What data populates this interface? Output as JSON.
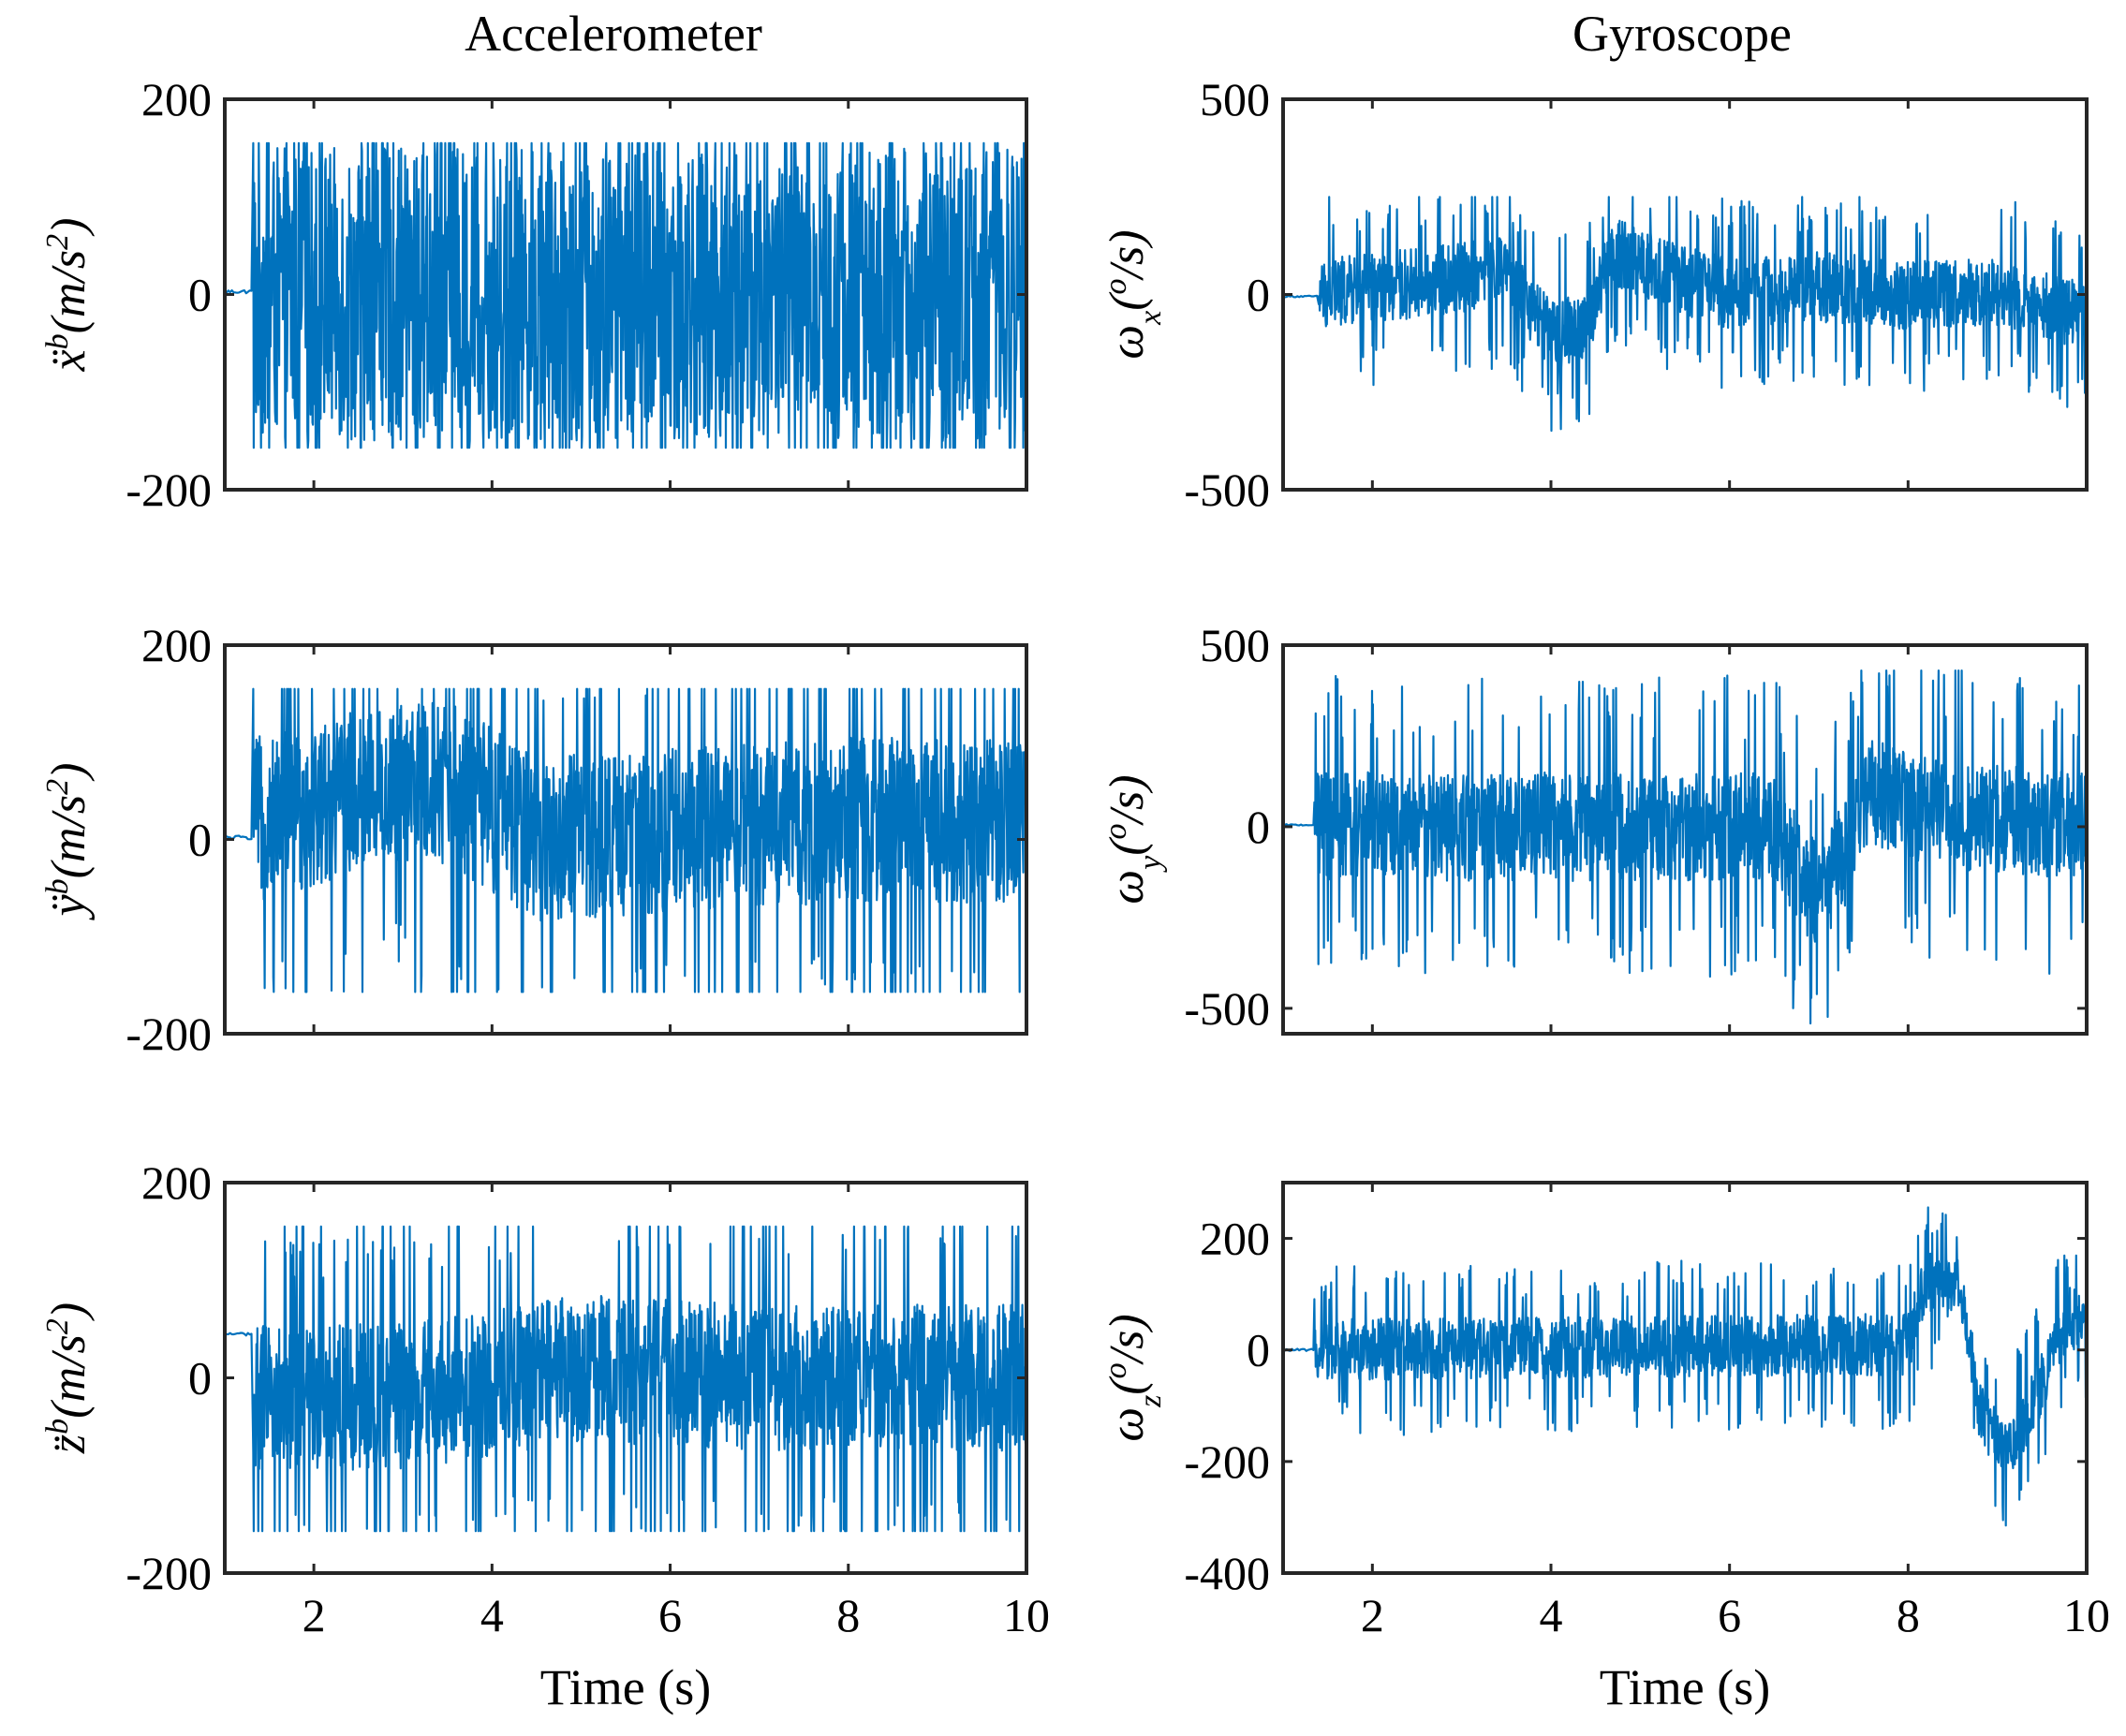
{
  "figure": {
    "columns": [
      "Accelerometer",
      "Gyroscope"
    ]
  },
  "chart_data": [
    {
      "type": "line",
      "id": "acc-x",
      "column": "Accelerometer",
      "ylabel": "ẍ^b (m/s^2)",
      "ylabel_parts": {
        "sym": "ẍ",
        "sup": "b",
        "unit_open": "(m/s",
        "unit_sup": "2",
        "unit_close": ")"
      },
      "xlabel": "",
      "xlim": [
        1,
        10
      ],
      "ylim": [
        -200,
        200
      ],
      "xticks": [
        2,
        4,
        6,
        8,
        10
      ],
      "yticks": [
        -200,
        0,
        200
      ],
      "ytick_labels": [
        "-200",
        "0",
        "200"
      ],
      "series": [
        {
          "name": "ẍ^b",
          "color": "#0072BD",
          "t_start": 1.32,
          "t_end": 10,
          "baseline_before_start": 3,
          "amplitude": 150,
          "clip": [
            -157,
            155
          ],
          "envelope": [
            [
              1.32,
              0
            ],
            [
              10,
              0
            ]
          ]
        }
      ]
    },
    {
      "type": "line",
      "id": "gyro-x",
      "column": "Gyroscope",
      "ylabel": "ω_x (°/s)",
      "ylabel_parts": {
        "sym": "ω",
        "sub": "x",
        "unit_open": "(",
        "unit_sup": "o",
        "unit_close": "/s)"
      },
      "xlabel": "",
      "xlim": [
        1,
        10
      ],
      "ylim": [
        -500,
        500
      ],
      "xticks": [
        2,
        4,
        6,
        8,
        10
      ],
      "yticks": [
        -500,
        0,
        500
      ],
      "ytick_labels": [
        "-500",
        "0",
        "500"
      ],
      "series": [
        {
          "name": "ω_x",
          "color": "#0072BD",
          "t_start": 1.4,
          "t_end": 10,
          "baseline_before_start": -5,
          "amplitude": 90,
          "clip": [
            -350,
            250
          ],
          "envelope": [
            [
              1.4,
              0
            ],
            [
              2.5,
              30
            ],
            [
              3.5,
              60
            ],
            [
              4.0,
              -110
            ],
            [
              4.4,
              -80
            ],
            [
              4.7,
              110
            ],
            [
              5.2,
              60
            ],
            [
              6,
              0
            ],
            [
              7,
              20
            ],
            [
              8,
              0
            ],
            [
              9,
              10
            ],
            [
              10,
              -60
            ]
          ]
        }
      ]
    },
    {
      "type": "line",
      "id": "acc-y",
      "column": "Accelerometer",
      "ylabel": "ÿ^b (m/s^2)",
      "ylabel_parts": {
        "sym": "ÿ",
        "sup": "b",
        "unit_open": "(m/s",
        "unit_sup": "2",
        "unit_close": ")"
      },
      "xlabel": "",
      "xlim": [
        1,
        10
      ],
      "ylim": [
        -200,
        200
      ],
      "xticks": [
        2,
        4,
        6,
        8,
        10
      ],
      "yticks": [
        -200,
        0,
        200
      ],
      "ytick_labels": [
        "-200",
        "0",
        "200"
      ],
      "series": [
        {
          "name": "ÿ^b",
          "color": "#0072BD",
          "t_start": 1.32,
          "t_end": 10,
          "baseline_before_start": 2,
          "amplitude": 85,
          "clip": [
            -157,
            155
          ],
          "envelope": [
            [
              1.32,
              20
            ],
            [
              2.5,
              50
            ],
            [
              3.5,
              60
            ],
            [
              4.5,
              0
            ],
            [
              6,
              10
            ],
            [
              8,
              20
            ],
            [
              10,
              20
            ]
          ]
        }
      ]
    },
    {
      "type": "line",
      "id": "gyro-y",
      "column": "Gyroscope",
      "ylabel": "ω_y (°/s)",
      "ylabel_parts": {
        "sym": "ω",
        "sub": "y",
        "unit_open": "(",
        "unit_sup": "o",
        "unit_close": "/s)"
      },
      "xlabel": "",
      "xlim": [
        1,
        10
      ],
      "ylim": [
        -570,
        500
      ],
      "xticks": [
        2,
        4,
        6,
        8,
        10
      ],
      "yticks": [
        -500,
        0,
        500
      ],
      "ytick_labels": [
        "-500",
        "0",
        "500"
      ],
      "series": [
        {
          "name": "ω_y",
          "color": "#0072BD",
          "t_start": 1.35,
          "t_end": 10,
          "baseline_before_start": 5,
          "amplitude": 150,
          "clip": [
            -560,
            430
          ],
          "envelope": [
            [
              1.35,
              0
            ],
            [
              6.5,
              0
            ],
            [
              6.9,
              -180
            ],
            [
              7.2,
              -120
            ],
            [
              7.6,
              100
            ],
            [
              8.2,
              40
            ],
            [
              10,
              0
            ]
          ]
        }
      ]
    },
    {
      "type": "line",
      "id": "acc-z",
      "column": "Accelerometer",
      "ylabel": "z̈^b (m/s^2)",
      "ylabel_parts": {
        "sym": "z̈",
        "sup": "b",
        "unit_open": "(m/s",
        "unit_sup": "2",
        "unit_close": ")"
      },
      "xlabel": "Time (s)",
      "xlim": [
        1,
        10
      ],
      "ylim": [
        -200,
        200
      ],
      "xticks": [
        2,
        4,
        6,
        8,
        10
      ],
      "yticks": [
        -200,
        0,
        200
      ],
      "ytick_labels": [
        "-200",
        "0",
        "200"
      ],
      "xtick_labels": [
        "2",
        "4",
        "6",
        "8",
        "10"
      ],
      "series": [
        {
          "name": "z̈^b",
          "color": "#0072BD",
          "t_start": 1.32,
          "t_end": 10,
          "baseline_before_start": 45,
          "amplitude": 75,
          "clip": [
            -157,
            155
          ],
          "envelope": [
            [
              1.32,
              -20
            ],
            [
              3,
              -20
            ],
            [
              5,
              10
            ],
            [
              7,
              0
            ],
            [
              10,
              0
            ]
          ]
        }
      ]
    },
    {
      "type": "line",
      "id": "gyro-z",
      "column": "Gyroscope",
      "ylabel": "ω_z (°/s)",
      "ylabel_parts": {
        "sym": "ω",
        "sub": "z",
        "unit_open": "(",
        "unit_sup": "o",
        "unit_close": "/s)"
      },
      "xlabel": "Time (s)",
      "xlim": [
        1,
        10
      ],
      "ylim": [
        -400,
        300
      ],
      "xticks": [
        2,
        4,
        6,
        8,
        10
      ],
      "yticks": [
        -400,
        -200,
        0,
        200
      ],
      "ytick_labels": [
        "-400",
        "-200",
        "0",
        "200"
      ],
      "xtick_labels": [
        "2",
        "4",
        "6",
        "8",
        "10"
      ],
      "series": [
        {
          "name": "ω_z",
          "color": "#0072BD",
          "t_start": 1.35,
          "t_end": 10,
          "baseline_before_start": 0,
          "amplitude": 55,
          "clip": [
            -370,
            300
          ],
          "envelope": [
            [
              1.35,
              0
            ],
            [
              8.0,
              10
            ],
            [
              8.2,
              120
            ],
            [
              8.6,
              110
            ],
            [
              8.8,
              -110
            ],
            [
              9.1,
              -190
            ],
            [
              9.5,
              -60
            ],
            [
              9.8,
              60
            ],
            [
              10,
              40
            ]
          ]
        }
      ]
    }
  ]
}
